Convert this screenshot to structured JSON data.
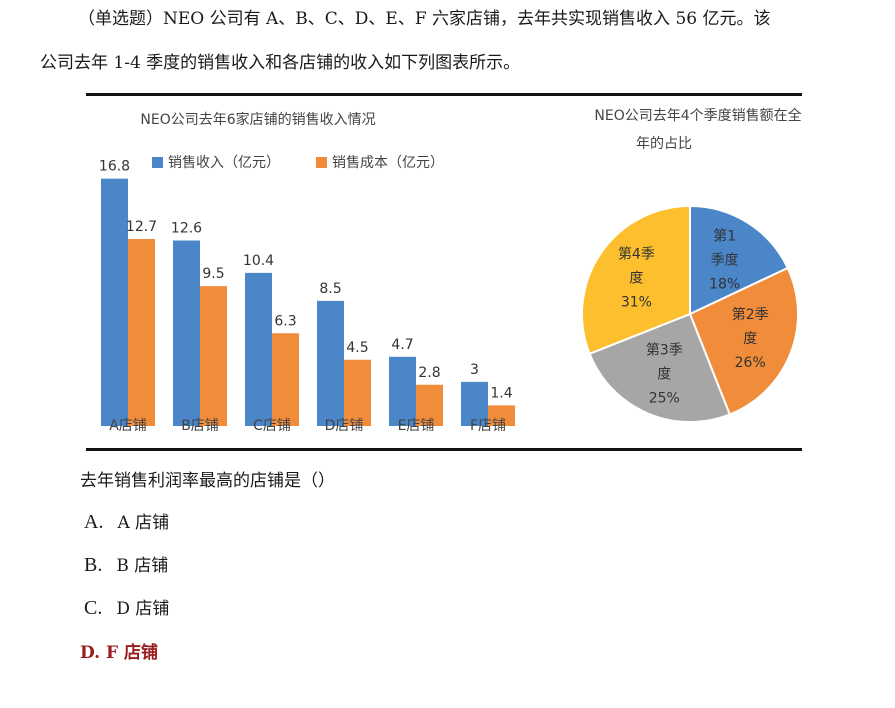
{
  "question": {
    "line1": "（单选题）NEO 公司有 A、B、C、D、E、F 六家店铺，去年共实现销售收入 56 亿元。该",
    "line2": "公司去年 1-4 季度的销售收入和各店铺的收入如下列图表所示。",
    "prompt": "去年销售利润率最高的店铺是（）"
  },
  "options": [
    {
      "letter": "A.",
      "text": "A 店铺"
    },
    {
      "letter": "B.",
      "text": "B 店铺"
    },
    {
      "letter": "C.",
      "text": "D 店铺"
    }
  ],
  "answer": "D.  F 店铺",
  "chart_data": [
    {
      "type": "bar",
      "title": "NEO公司去年6家店铺的销售收入情况",
      "categories": [
        "A店铺",
        "B店铺",
        "C店铺",
        "D店铺",
        "E店铺",
        "F店铺"
      ],
      "series": [
        {
          "name": "销售收入（亿元）",
          "color": "#4a86c8",
          "values": [
            16.8,
            12.6,
            10.4,
            8.5,
            4.7,
            3
          ]
        },
        {
          "name": "销售成本（亿元）",
          "color": "#f08c3a",
          "values": [
            12.7,
            9.5,
            6.3,
            4.5,
            2.8,
            1.4
          ]
        }
      ],
      "value_labels": [
        [
          "16.8",
          "12.6",
          "10.4",
          "8.5",
          "4.7",
          "3"
        ],
        [
          "12.7",
          "9.5",
          "6.3",
          "4.5",
          "2.8",
          "1.4"
        ]
      ],
      "ylim": [
        0,
        18
      ],
      "legend": "top",
      "grid": false
    },
    {
      "type": "pie",
      "title_lines": [
        "NEO公司去年4个季度销售额在全",
        "年的占比"
      ],
      "slices": [
        {
          "label_lines": [
            "第1",
            "季度",
            "18%"
          ],
          "value": 18,
          "color": "#4a86c8"
        },
        {
          "label_lines": [
            "第2季",
            "度",
            "26%"
          ],
          "value": 26,
          "color": "#f08c3a"
        },
        {
          "label_lines": [
            "第3季",
            "度",
            "25%"
          ],
          "value": 25,
          "color": "#a6a6a6"
        },
        {
          "label_lines": [
            "第4季",
            "度",
            "31%"
          ],
          "value": 31,
          "color": "#fdbf2d"
        }
      ]
    }
  ]
}
